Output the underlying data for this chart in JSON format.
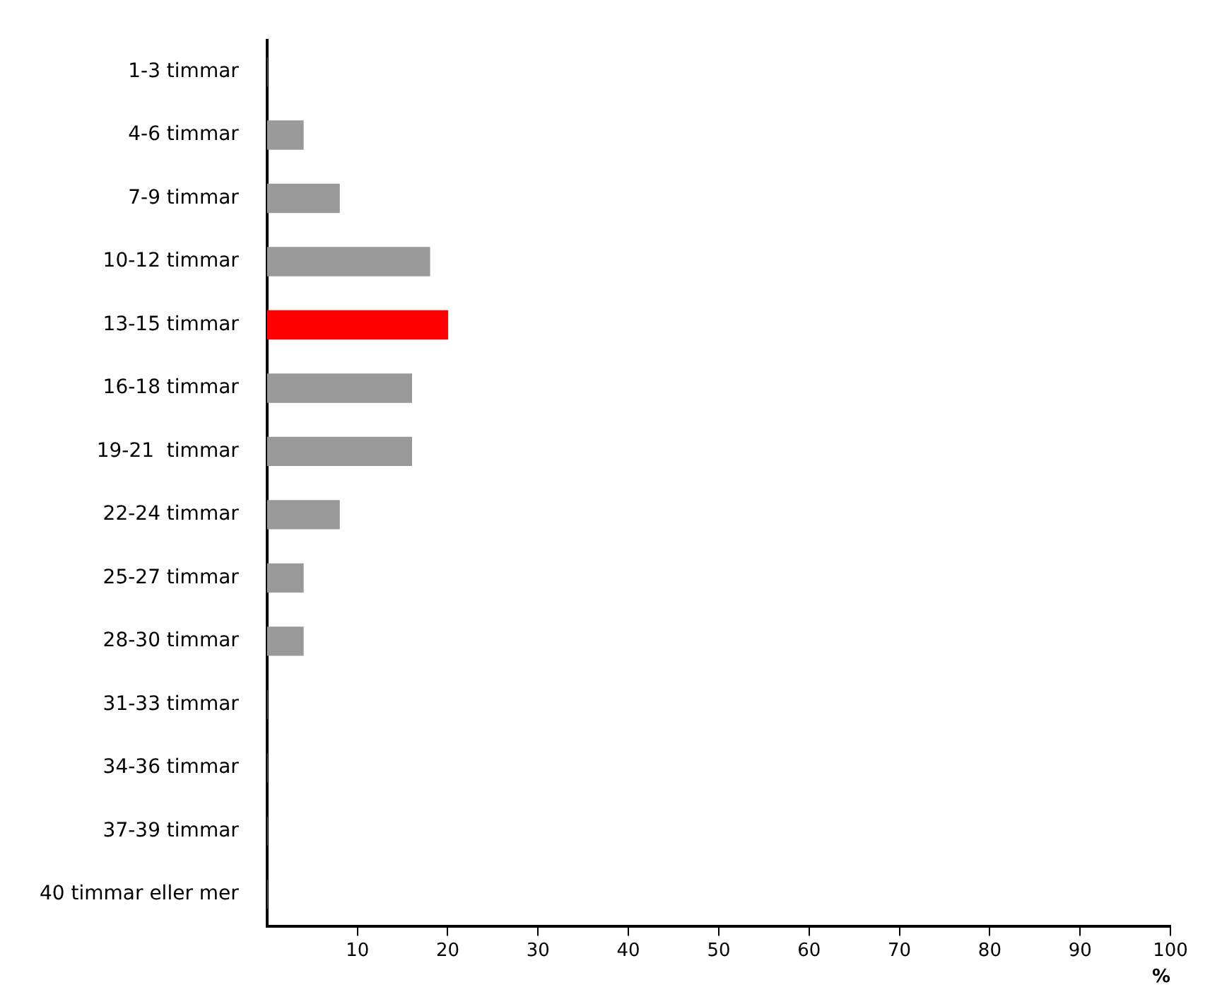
{
  "chart_data": {
    "type": "bar",
    "orientation": "horizontal",
    "xlabel": "%",
    "categories": [
      "1-3 timmar",
      "4-6 timmar",
      "7-9 timmar",
      "10-12 timmar",
      "13-15 timmar",
      "16-18 timmar",
      "19-21  timmar",
      "22-24 timmar",
      "25-27 timmar",
      "28-30 timmar",
      "31-33 timmar",
      "34-36 timmar",
      "37-39 timmar",
      "40 timmar eller mer"
    ],
    "values": [
      0,
      4,
      8,
      18,
      20,
      16,
      16,
      8,
      4,
      4,
      0,
      0,
      0,
      0
    ],
    "colors": [
      "#999999",
      "#999999",
      "#999999",
      "#999999",
      "#ff0000",
      "#999999",
      "#999999",
      "#999999",
      "#999999",
      "#999999",
      "#999999",
      "#999999",
      "#999999",
      "#999999"
    ],
    "xlim": [
      0,
      100
    ],
    "xticks": [
      10,
      20,
      30,
      40,
      50,
      60,
      70,
      80,
      90,
      100
    ],
    "grid": false,
    "legend": false
  }
}
